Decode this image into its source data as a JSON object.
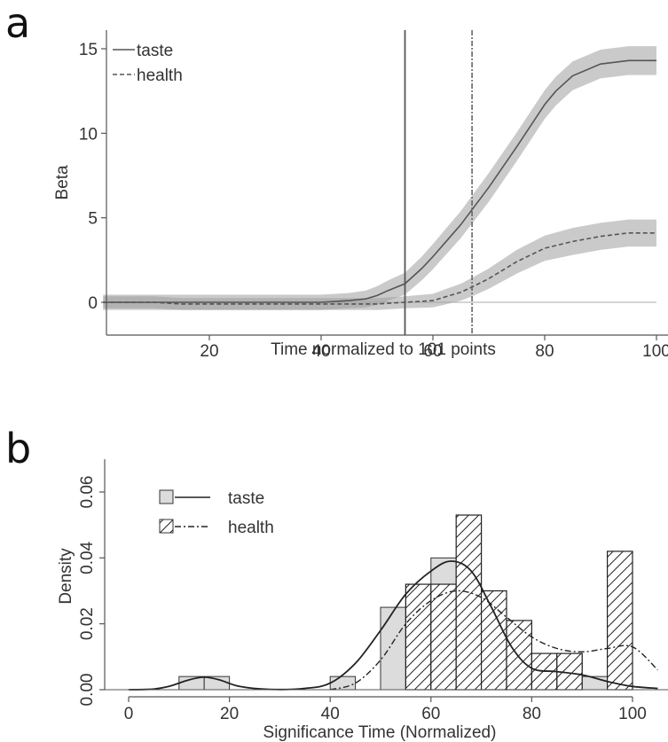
{
  "chart_data": [
    {
      "panel": "a",
      "type": "line",
      "xlabel": "Time normalized to 101 points",
      "ylabel": "Beta",
      "xlim": [
        1,
        101
      ],
      "ylim": [
        -2,
        16
      ],
      "xticks": [
        20,
        40,
        60,
        80,
        100
      ],
      "yticks": [
        0,
        5,
        10,
        15
      ],
      "legend": {
        "placement": "top-left",
        "entries": [
          "taste",
          "health"
        ]
      },
      "zero_line": 0,
      "vlines": [
        {
          "series": "taste",
          "x": 55,
          "style": "solid"
        },
        {
          "series": "health",
          "x": 67,
          "style": "dashdot"
        }
      ],
      "series": [
        {
          "name": "taste",
          "style": "solid",
          "x": [
            1,
            5,
            10,
            15,
            20,
            25,
            30,
            35,
            40,
            45,
            48,
            50,
            52,
            55,
            58,
            60,
            65,
            70,
            75,
            80,
            82,
            85,
            90,
            95,
            100
          ],
          "y": [
            0,
            0,
            0,
            0,
            0,
            0,
            0,
            0,
            0,
            0.1,
            0.2,
            0.4,
            0.7,
            1.1,
            2.0,
            2.7,
            4.6,
            6.8,
            9.2,
            11.7,
            12.5,
            13.4,
            14.1,
            14.3,
            14.3
          ],
          "band": [
            0.45,
            0.45,
            0.45,
            0.45,
            0.45,
            0.45,
            0.45,
            0.45,
            0.45,
            0.45,
            0.5,
            0.55,
            0.6,
            0.65,
            0.7,
            0.75,
            0.8,
            0.85,
            0.85,
            0.85,
            0.85,
            0.85,
            0.85,
            0.85,
            0.85
          ]
        },
        {
          "name": "health",
          "style": "dashed",
          "x": [
            1,
            5,
            10,
            15,
            20,
            25,
            30,
            35,
            40,
            45,
            50,
            55,
            60,
            62,
            65,
            67,
            70,
            75,
            80,
            85,
            90,
            95,
            100
          ],
          "y": [
            0,
            0,
            0,
            -0.1,
            -0.1,
            -0.1,
            -0.1,
            -0.1,
            -0.1,
            -0.1,
            -0.1,
            0,
            0.1,
            0.3,
            0.6,
            0.9,
            1.4,
            2.4,
            3.2,
            3.6,
            3.9,
            4.1,
            4.1
          ],
          "band": [
            0.35,
            0.35,
            0.35,
            0.35,
            0.35,
            0.35,
            0.35,
            0.35,
            0.35,
            0.35,
            0.35,
            0.35,
            0.4,
            0.45,
            0.5,
            0.55,
            0.6,
            0.7,
            0.75,
            0.8,
            0.8,
            0.8,
            0.8
          ]
        }
      ]
    },
    {
      "panel": "b",
      "type": "bar",
      "xlabel": "Significance Time (Normalized)",
      "ylabel": "Density",
      "xlim": [
        0,
        100
      ],
      "ylim": [
        0,
        0.06
      ],
      "xticks": [
        0,
        20,
        40,
        60,
        80,
        100
      ],
      "yticks": [
        "0.00",
        "0.02",
        "0.04",
        "0.06"
      ],
      "legend": {
        "placement": "top-left",
        "entries": [
          "taste",
          "health"
        ]
      },
      "bin_width": 5,
      "bin_starts": [
        10,
        15,
        40,
        50,
        55,
        60,
        65,
        70,
        75,
        80,
        85,
        90,
        95
      ],
      "series": [
        {
          "name": "taste",
          "style": "light-gray histogram, solid density",
          "values": [
            0.004,
            0.004,
            0.004,
            0.025,
            0.032,
            0.04,
            0.03,
            0.018,
            0.016,
            0.011,
            0.011,
            0.004,
            0.004
          ]
        },
        {
          "name": "health",
          "style": "hatched histogram, dash-dot density",
          "values": [
            0,
            0,
            0,
            0,
            0.032,
            0.032,
            0.053,
            0.03,
            0.021,
            0.011,
            0.011,
            0,
            0.042
          ]
        }
      ],
      "density_curves": [
        {
          "name": "taste",
          "style": "solid",
          "x": [
            0,
            5,
            8,
            12,
            15,
            18,
            22,
            28,
            35,
            40,
            45,
            50,
            55,
            60,
            64,
            68,
            72,
            76,
            80,
            85,
            90,
            95,
            100,
            105
          ],
          "y": [
            0,
            0.0002,
            0.001,
            0.003,
            0.0038,
            0.003,
            0.001,
            0.0001,
            0.0004,
            0.002,
            0.008,
            0.018,
            0.029,
            0.036,
            0.039,
            0.036,
            0.025,
            0.013,
            0.0065,
            0.0055,
            0.0045,
            0.0025,
            0.001,
            0.0004
          ]
        },
        {
          "name": "health",
          "style": "dashdot",
          "x": [
            40,
            45,
            50,
            55,
            60,
            65,
            70,
            75,
            80,
            85,
            90,
            95,
            100,
            105
          ],
          "y": [
            0,
            0.002,
            0.009,
            0.02,
            0.027,
            0.03,
            0.028,
            0.022,
            0.016,
            0.0125,
            0.0115,
            0.0125,
            0.013,
            0.006
          ]
        }
      ]
    }
  ]
}
